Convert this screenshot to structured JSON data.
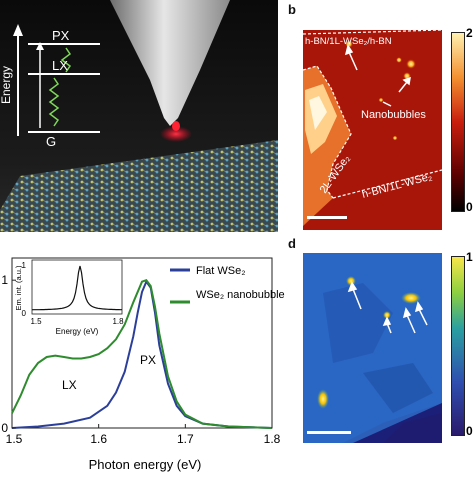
{
  "panel_a": {
    "level_top": "PX",
    "level_mid": "LX",
    "level_ground": "G",
    "axis_label": "Energy"
  },
  "panel_b": {
    "letter": "b",
    "label_top": "h-BN/1L-WSe₂/h-BN",
    "label_bubbles": "Nanobubbles",
    "label_2l": "2L-WSe₂",
    "label_hbn": "h-BN/1L-WSe₂",
    "colorbar_top": "2",
    "colorbar_bottom": "0"
  },
  "panel_d": {
    "letter": "d",
    "colorbar_top": "1",
    "colorbar_bottom": "0"
  },
  "chart_data": {
    "type": "line",
    "xlabel": "Photon energy (eV)",
    "ylabel": "",
    "xlim": [
      1.5,
      1.8
    ],
    "ylim": [
      0,
      1.15
    ],
    "x_ticks": [
      "1.5",
      "1.6",
      "1.7",
      "1.8"
    ],
    "y_ticks": [
      "0",
      "1"
    ],
    "legend": [
      "Flat WSe₂",
      "WSe₂ nanobubble"
    ],
    "annotations": [
      "LX",
      "PX"
    ],
    "series": [
      {
        "name": "Flat WSe₂",
        "color": "#2b3f9a",
        "x": [
          1.5,
          1.53,
          1.56,
          1.59,
          1.61,
          1.62,
          1.63,
          1.64,
          1.645,
          1.65,
          1.655,
          1.66,
          1.665,
          1.67,
          1.68,
          1.69,
          1.7,
          1.72,
          1.75,
          1.8
        ],
        "y": [
          0.0,
          0.01,
          0.03,
          0.07,
          0.15,
          0.24,
          0.38,
          0.62,
          0.78,
          0.92,
          0.99,
          0.95,
          0.78,
          0.56,
          0.3,
          0.15,
          0.08,
          0.03,
          0.01,
          0.0
        ]
      },
      {
        "name": "WSe₂ nanobubble",
        "color": "#2e8b2e",
        "x": [
          1.5,
          1.51,
          1.52,
          1.53,
          1.54,
          1.55,
          1.56,
          1.57,
          1.58,
          1.59,
          1.6,
          1.61,
          1.62,
          1.63,
          1.64,
          1.65,
          1.655,
          1.66,
          1.665,
          1.67,
          1.68,
          1.69,
          1.7,
          1.72,
          1.75,
          1.8
        ],
        "y": [
          0.1,
          0.22,
          0.36,
          0.44,
          0.48,
          0.49,
          0.48,
          0.47,
          0.47,
          0.48,
          0.5,
          0.54,
          0.6,
          0.7,
          0.85,
          0.99,
          1.0,
          0.96,
          0.82,
          0.64,
          0.35,
          0.18,
          0.09,
          0.03,
          0.01,
          0.0
        ]
      }
    ],
    "inset": {
      "xlabel": "Energy (eV)",
      "ylabel": "Em. int. (a.u.)",
      "x_ticks": [
        "1.5",
        "1.8"
      ],
      "y_ticks": [
        "0",
        "1"
      ]
    }
  }
}
